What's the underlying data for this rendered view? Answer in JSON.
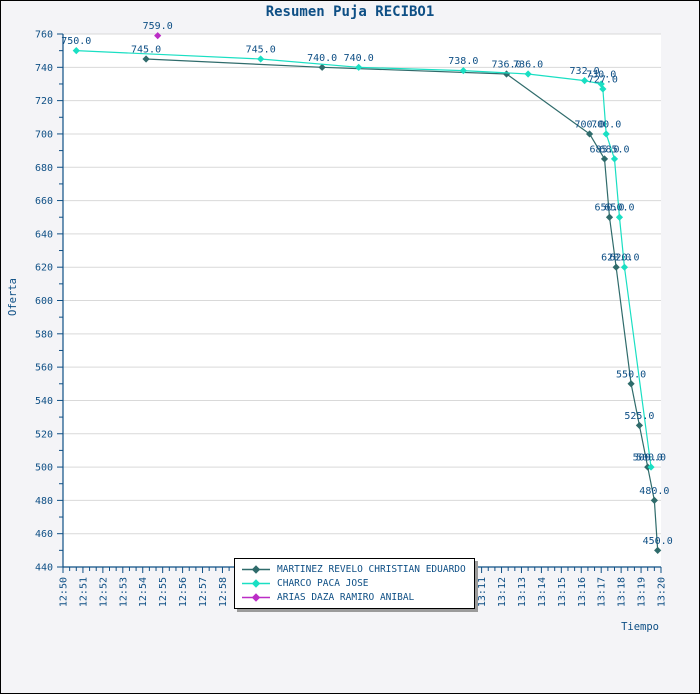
{
  "title": "Resumen Puja RECIBO1",
  "axes": {
    "x_label": "Tiempo",
    "y_label": "Oferta",
    "x_ticks": [
      "12:50",
      "12:51",
      "12:52",
      "12:53",
      "12:54",
      "12:55",
      "12:56",
      "12:57",
      "12:58",
      "12:59",
      "13:00",
      "13:01",
      "13:02",
      "13:03",
      "13:04",
      "13:05",
      "13:06",
      "13:07",
      "13:08",
      "13:09",
      "13:10",
      "13:11",
      "13:12",
      "13:13",
      "13:14",
      "13:15",
      "13:16",
      "13:17",
      "13:18",
      "13:19",
      "13:20"
    ],
    "y_ticks": [
      "440",
      "460",
      "480",
      "500",
      "520",
      "540",
      "560",
      "580",
      "600",
      "620",
      "640",
      "660",
      "680",
      "700",
      "720",
      "740",
      "760"
    ]
  },
  "colors": {
    "text": "#0e4f85",
    "grid": "#d9d9d9",
    "background": "#f4f4f7",
    "plot_background": "#ffffff",
    "frame_border": "#000000",
    "legend_shadow": "#9b9b9b"
  },
  "chart_data": {
    "type": "line",
    "title": "Resumen Puja RECIBO1",
    "xlabel": "Tiempo",
    "ylabel": "Oferta",
    "x_range": [
      "12:50",
      "13:20"
    ],
    "ylim": [
      440,
      760
    ],
    "y_major_step": 20,
    "grid": "horizontal",
    "legend_position": "bottom-center",
    "marker": "diamond",
    "series": [
      {
        "name": "MARTINEZ REVELO CHRISTIAN EDUARDO",
        "color": "#2f6b6b",
        "points": [
          {
            "time": "12:54:10",
            "value": 745.0,
            "label": "745.0"
          },
          {
            "time": "13:03:00",
            "value": 740.0,
            "label": "740.0"
          },
          {
            "time": "13:12:15",
            "value": 736.0,
            "label": "736.0"
          },
          {
            "time": "13:16:25",
            "value": 700.0,
            "label": "700.0"
          },
          {
            "time": "13:17:10",
            "value": 685.0,
            "label": "685.0"
          },
          {
            "time": "13:17:25",
            "value": 650.0,
            "label": "650.0"
          },
          {
            "time": "13:17:45",
            "value": 620.0,
            "label": "620.0"
          },
          {
            "time": "13:18:30",
            "value": 550.0,
            "label": "550.0"
          },
          {
            "time": "13:18:55",
            "value": 525.0,
            "label": "525.0"
          },
          {
            "time": "13:19:20",
            "value": 500.0,
            "label": "500.0"
          },
          {
            "time": "13:19:40",
            "value": 480.0,
            "label": "480.0"
          },
          {
            "time": "13:19:50",
            "value": 450.0,
            "label": "450.0"
          }
        ]
      },
      {
        "name": "CHARCO PACA JOSE",
        "color": "#1adfc3",
        "points": [
          {
            "time": "12:50:40",
            "value": 750.0,
            "label": "750.0"
          },
          {
            "time": "12:59:55",
            "value": 745.0,
            "label": "745.0"
          },
          {
            "time": "13:04:50",
            "value": 740.0,
            "label": "740.0"
          },
          {
            "time": "13:10:05",
            "value": 738.0,
            "label": "738.0"
          },
          {
            "time": "13:13:20",
            "value": 736.0,
            "label": "736.0"
          },
          {
            "time": "13:16:10",
            "value": 732.0,
            "label": "732.0"
          },
          {
            "time": "13:17:00",
            "value": 730.0,
            "label": "730.0"
          },
          {
            "time": "13:17:05",
            "value": 727.0,
            "label": "727.0"
          },
          {
            "time": "13:17:15",
            "value": 700.0,
            "label": "700.0"
          },
          {
            "time": "13:17:40",
            "value": 685.0,
            "label": "685.0"
          },
          {
            "time": "13:17:55",
            "value": 650.0,
            "label": "650.0"
          },
          {
            "time": "13:18:10",
            "value": 620.0,
            "label": "620.0"
          },
          {
            "time": "13:19:30",
            "value": 500.0,
            "label": "500.0"
          }
        ]
      },
      {
        "name": "ARIAS DAZA RAMIRO ANIBAL",
        "color": "#bb2dc6",
        "points": [
          {
            "time": "12:54:45",
            "value": 759.0,
            "label": "759.0"
          }
        ]
      }
    ]
  }
}
